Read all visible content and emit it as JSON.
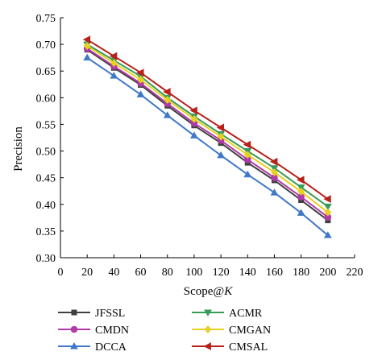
{
  "chart_data": {
    "type": "line",
    "xlabel": "Scope@",
    "xlabel_italic": "K",
    "ylabel": "Precision",
    "xlim": [
      0,
      220
    ],
    "ylim": [
      0.3,
      0.75
    ],
    "xticks": [
      0,
      20,
      40,
      60,
      80,
      100,
      120,
      140,
      160,
      180,
      200,
      220
    ],
    "yticks": [
      0.3,
      0.35,
      0.4,
      0.45,
      0.5,
      0.55,
      0.6,
      0.65,
      0.7,
      0.75
    ],
    "ytick_labels": [
      "0.30",
      "0.35",
      "0.40",
      "0.45",
      "0.50",
      "0.55",
      "0.60",
      "0.65",
      "0.70",
      "0.75"
    ],
    "grid": false,
    "legend_placement": "bottom",
    "x": [
      20,
      40,
      60,
      80,
      100,
      120,
      140,
      160,
      180,
      200
    ],
    "series": [
      {
        "name": "JFSSL",
        "color": "#404040",
        "marker": "square",
        "values": [
          0.69,
          0.656,
          0.624,
          0.585,
          0.548,
          0.515,
          0.478,
          0.445,
          0.408,
          0.37
        ]
      },
      {
        "name": "ACMR",
        "color": "#3a9a5a",
        "marker": "triangle-down",
        "values": [
          0.7,
          0.67,
          0.64,
          0.6,
          0.565,
          0.532,
          0.5,
          0.468,
          0.432,
          0.396
        ]
      },
      {
        "name": "CMDN",
        "color": "#b03aa8",
        "marker": "circle",
        "values": [
          0.692,
          0.659,
          0.627,
          0.589,
          0.552,
          0.52,
          0.484,
          0.45,
          0.414,
          0.376
        ]
      },
      {
        "name": "CMGAN",
        "color": "#e8d020",
        "marker": "diamond",
        "values": [
          0.697,
          0.665,
          0.634,
          0.596,
          0.56,
          0.527,
          0.493,
          0.46,
          0.424,
          0.385
        ]
      },
      {
        "name": "DCCA",
        "color": "#3f78c8",
        "marker": "triangle-up",
        "values": [
          0.675,
          0.641,
          0.606,
          0.567,
          0.529,
          0.492,
          0.456,
          0.422,
          0.384,
          0.342
        ]
      },
      {
        "name": "CMSAL",
        "color": "#b8201a",
        "marker": "triangle-left",
        "values": [
          0.709,
          0.678,
          0.647,
          0.611,
          0.576,
          0.544,
          0.512,
          0.48,
          0.446,
          0.41
        ]
      }
    ]
  }
}
